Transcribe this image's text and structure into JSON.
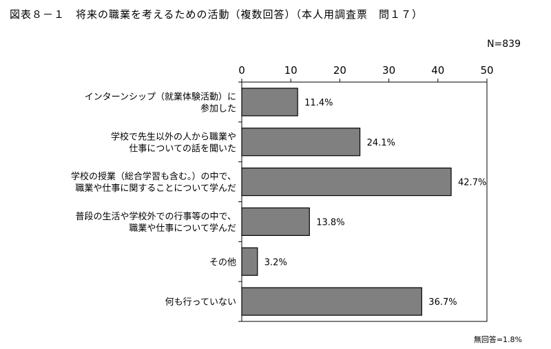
{
  "title": "図表８－１　将来の職業を考えるための活動（複数回答）（本人用調査票　問１７）",
  "n_label": "N=839",
  "footnote": "無回答=1.8%",
  "chart_data": {
    "type": "bar",
    "orientation": "horizontal",
    "title": "図表８－１　将来の職業を考えるための活動（複数回答）（本人用調査票　問１７）",
    "categories": [
      [
        "インターンシップ（就業体験活動）に",
        "参加した"
      ],
      [
        "学校で先生以外の人から職業や",
        "仕事についての話を聞いた"
      ],
      [
        "学校の授業（総合学習も含む。）の中で、",
        "職業や仕事に関することについて学んだ"
      ],
      [
        "普段の生活や学校外での行事等の中で、",
        "職業や仕事について学んだ"
      ],
      [
        "その他"
      ],
      [
        "何も行っていない"
      ]
    ],
    "values": [
      11.4,
      24.1,
      42.7,
      13.8,
      3.2,
      36.7
    ],
    "data_labels": [
      "11.4%",
      "24.1%",
      "42.7%",
      "13.8%",
      "3.2%",
      "36.7%"
    ],
    "xlim": [
      0,
      50
    ],
    "ticks": [
      "0",
      "10",
      "20",
      "30",
      "40",
      "50"
    ],
    "axis_position": "top",
    "grid": false,
    "legend": "none",
    "colors": {
      "bar_fill": "#808080",
      "bar_stroke": "#000000"
    }
  }
}
